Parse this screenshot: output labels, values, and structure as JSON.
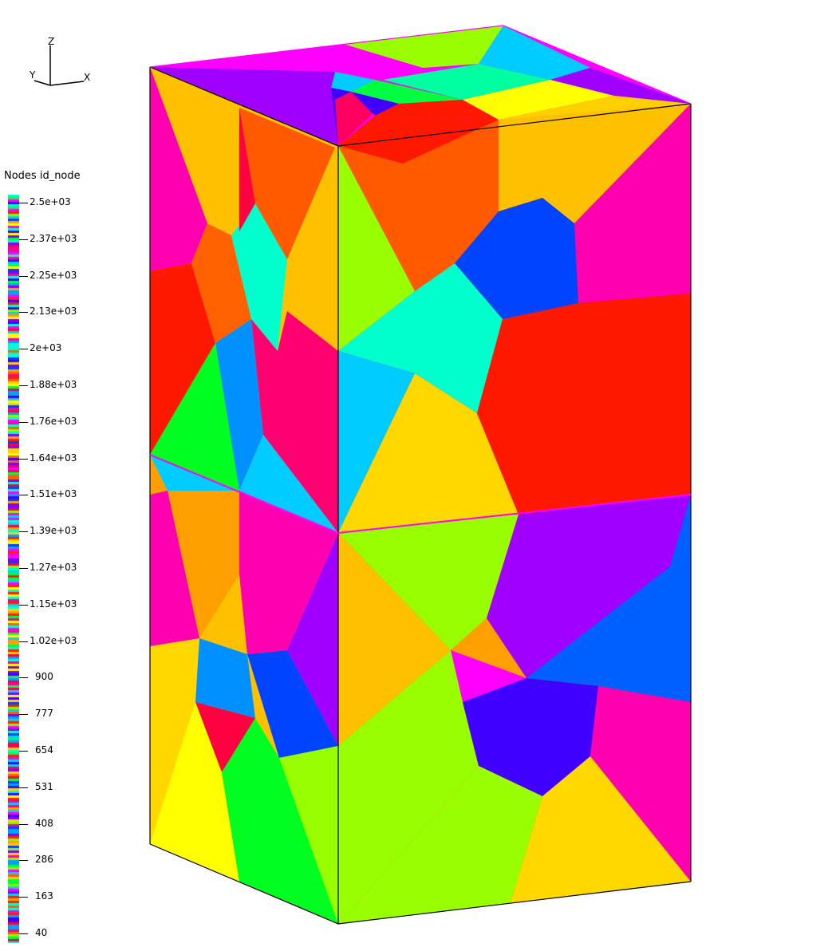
{
  "axes_triad": {
    "z_label": "Z",
    "y_label": "Y",
    "x_label": "X"
  },
  "legend": {
    "title": "Nodes id_node",
    "ticks": [
      "2.5e+03",
      "2.37e+03",
      "2.25e+03",
      "2.13e+03",
      "2e+03",
      "1.88e+03",
      "1.76e+03",
      "1.64e+03",
      "1.51e+03",
      "1.39e+03",
      "1.27e+03",
      "1.15e+03",
      "1.02e+03",
      "900",
      "777",
      "654",
      "531",
      "408",
      "286",
      "163",
      "40"
    ],
    "palette": [
      "#ff0040",
      "#ff00ff",
      "#8000ff",
      "#4000ff",
      "#0040ff",
      "#00a0ff",
      "#00d0ff",
      "#00ffd0",
      "#00ff40",
      "#80ff00",
      "#ffff00",
      "#ffd000",
      "#ffa000",
      "#ff6000",
      "#ff2000",
      "#ff00a0"
    ]
  },
  "colors": {
    "red": "#ff1800",
    "orange_red": "#ff5a00",
    "orange": "#ffa000",
    "amber": "#ffc000",
    "gold": "#ffd800",
    "yellow": "#ffff00",
    "lime": "#99ff00",
    "green": "#00ff20",
    "aqua": "#00ffcc",
    "sky": "#00ccff",
    "azure": "#0080ff",
    "blue": "#0044ff",
    "indigo": "#4000ff",
    "violet": "#a000ff",
    "magenta": "#ff00ff",
    "pink": "#ff00b0",
    "rose": "#ff0070",
    "crimson": "#ff0040"
  }
}
